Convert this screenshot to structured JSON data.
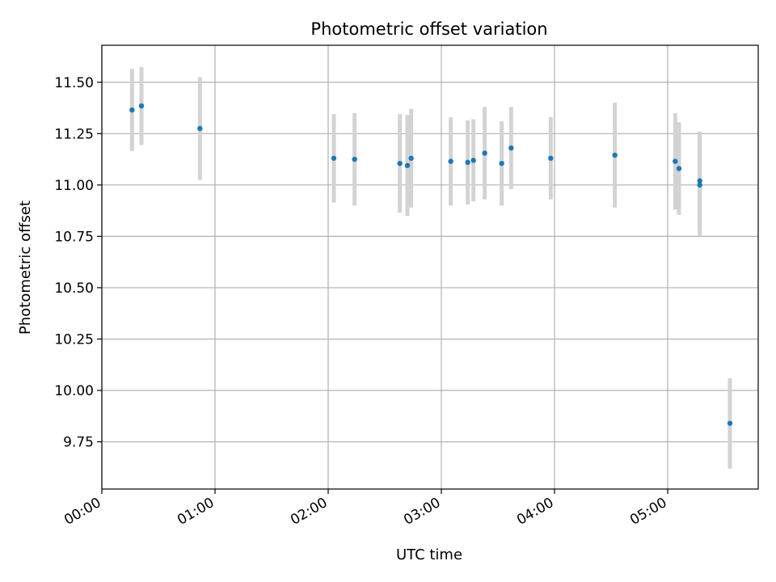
{
  "chart_data": {
    "type": "scatter",
    "title": "Photometric offset variation",
    "xlabel": "UTC time",
    "ylabel": "Photometric offset",
    "x_axis_type": "time",
    "xlim": [
      "00:00",
      "05:48"
    ],
    "ylim": [
      9.52,
      11.68
    ],
    "x_ticks": [
      "00:00",
      "01:00",
      "02:00",
      "03:00",
      "04:00",
      "05:00"
    ],
    "y_ticks": [
      9.75,
      10.0,
      10.25,
      10.5,
      10.75,
      11.0,
      11.25,
      11.5
    ],
    "y_tick_labels": [
      "9.75",
      "10.00",
      "10.25",
      "10.50",
      "10.75",
      "11.00",
      "11.25",
      "11.50"
    ],
    "grid": true,
    "legend": "none",
    "colors": {
      "marker": "#1f77b4",
      "errorbar": "#d3d3d3",
      "grid": "#b0b0b0"
    },
    "series": [
      {
        "points": [
          {
            "x": "00:16",
            "y": 11.365,
            "err": 0.2
          },
          {
            "x": "00:21",
            "y": 11.385,
            "err": 0.19
          },
          {
            "x": "00:52",
            "y": 11.275,
            "err": 0.25
          },
          {
            "x": "02:03",
            "y": 11.13,
            "err": 0.215
          },
          {
            "x": "02:14",
            "y": 11.125,
            "err": 0.225
          },
          {
            "x": "02:38",
            "y": 11.105,
            "err": 0.24
          },
          {
            "x": "02:42",
            "y": 11.095,
            "err": 0.245
          },
          {
            "x": "02:44",
            "y": 11.13,
            "err": 0.24
          },
          {
            "x": "03:05",
            "y": 11.115,
            "err": 0.215
          },
          {
            "x": "03:14",
            "y": 11.11,
            "err": 0.205
          },
          {
            "x": "03:17",
            "y": 11.12,
            "err": 0.2
          },
          {
            "x": "03:23",
            "y": 11.155,
            "err": 0.225
          },
          {
            "x": "03:32",
            "y": 11.105,
            "err": 0.205
          },
          {
            "x": "03:37",
            "y": 11.18,
            "err": 0.2
          },
          {
            "x": "03:58",
            "y": 11.13,
            "err": 0.2
          },
          {
            "x": "04:32",
            "y": 11.145,
            "err": 0.255
          },
          {
            "x": "05:04",
            "y": 11.115,
            "err": 0.235
          },
          {
            "x": "05:06",
            "y": 11.08,
            "err": 0.225
          },
          {
            "x": "05:17",
            "y": 11.02,
            "err": 0.24
          },
          {
            "x": "05:17",
            "y": 11.0,
            "err": 0.25
          },
          {
            "x": "05:33",
            "y": 9.84,
            "err": 0.22
          }
        ]
      }
    ]
  }
}
